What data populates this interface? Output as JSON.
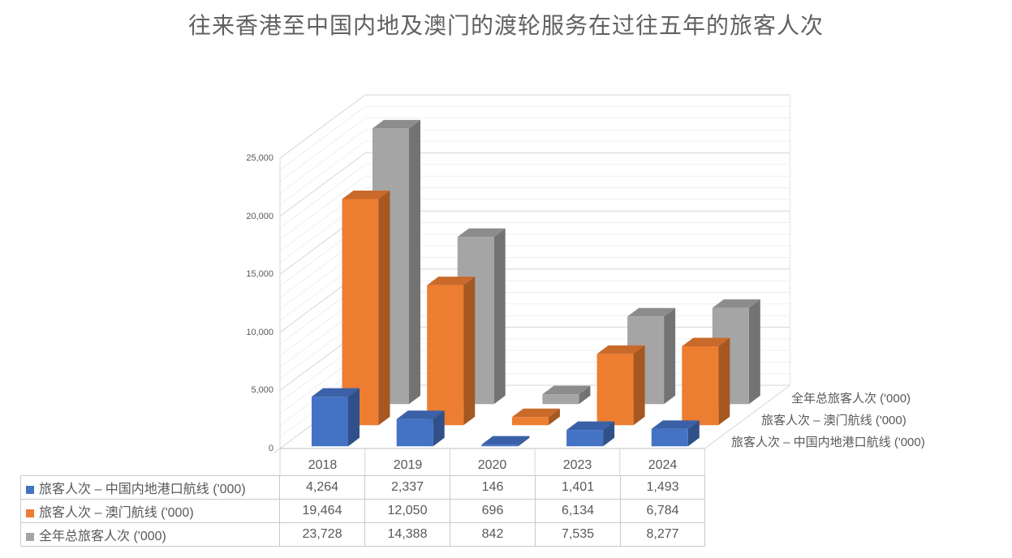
{
  "title": "往来香港至中国内地及澳门的渡轮服务在过往五年的旅客人次",
  "chart_data": {
    "type": "bar",
    "subtype": "3d-column",
    "title": "往来香港至中国内地及澳门的渡轮服务在过往五年的旅客人次",
    "categories": [
      "2018",
      "2019",
      "2020",
      "2023",
      "2024"
    ],
    "series": [
      {
        "name": "旅客人次 – 中国内地港口航线 ('000)",
        "color": "#4472C4",
        "values": [
          4264,
          2337,
          146,
          1401,
          1493
        ]
      },
      {
        "name": "旅客人次 – 澳门航线 ('000)",
        "color": "#ED7D31",
        "values": [
          19464,
          12050,
          696,
          6134,
          6784
        ]
      },
      {
        "name": "全年总旅客人次 ('000)",
        "color": "#A5A5A5",
        "values": [
          23728,
          14388,
          842,
          7535,
          8277
        ]
      }
    ],
    "value_axis": {
      "min": 0,
      "max": 25000,
      "major_unit": 5000,
      "minor_unit": 1000,
      "tick_labels": [
        "0",
        "5,000",
        "10,000",
        "15,000",
        "20,000",
        "25,000"
      ]
    },
    "depth_axis_labels": [
      "全年总旅客人次 ('000)",
      "旅客人次 – 澳门航线 ('000)",
      "旅客人次 – 中国内地港口航线 ('000)"
    ],
    "grid": true,
    "legend_position": "data-table"
  },
  "data_table": {
    "rows": [
      {
        "label": "旅客人次 – 中国内地港口航线 ('000)",
        "values": [
          "4,264",
          "2,337",
          "146",
          "1,401",
          "1,493"
        ]
      },
      {
        "label": "旅客人次 – 澳门航线 ('000)",
        "values": [
          "19,464",
          "12,050",
          "696",
          "6,134",
          "6,784"
        ]
      },
      {
        "label": "全年总旅客人次 ('000)",
        "values": [
          "23,728",
          "14,388",
          "842",
          "7,535",
          "8,277"
        ]
      }
    ]
  },
  "colors": {
    "series_blue": "#4472C4",
    "series_orange": "#ED7D31",
    "series_gray": "#A5A5A5",
    "grid_major": "#d6d6d6",
    "grid_minor": "#efefef",
    "axis_line": "#bfbfbf",
    "text": "#595959"
  }
}
